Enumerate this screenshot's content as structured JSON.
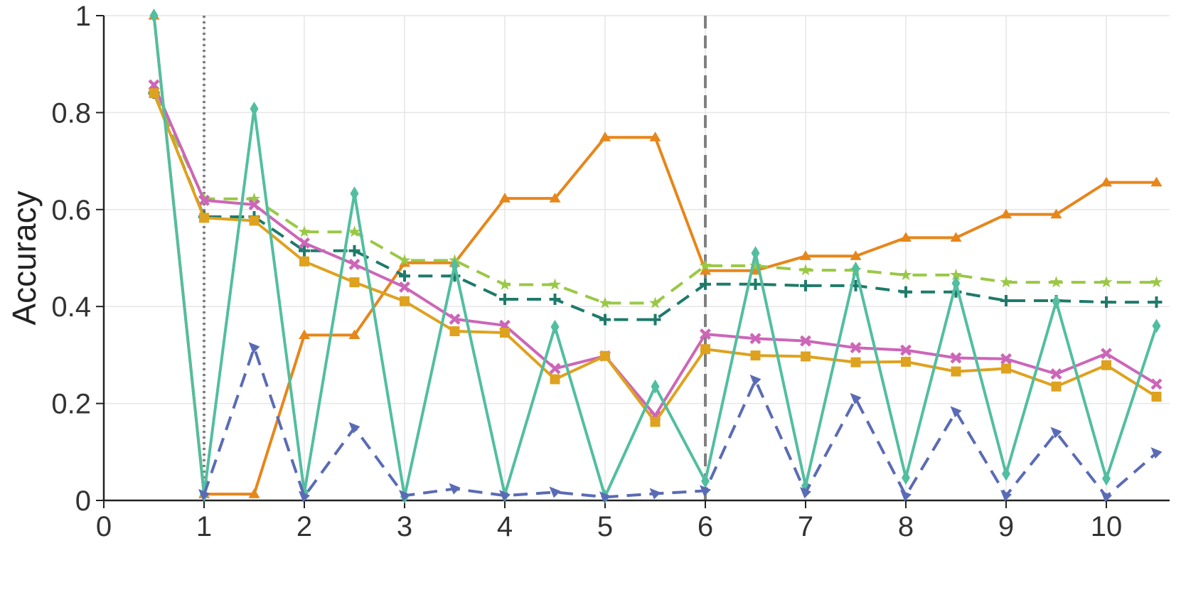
{
  "chart_data": {
    "type": "line",
    "title": "",
    "xlabel": "",
    "ylabel": "Accuracy",
    "xlim": [
      0,
      10.6
    ],
    "ylim": [
      0,
      1
    ],
    "xticks": [
      "0",
      "1",
      "2",
      "3",
      "4",
      "5",
      "6",
      "7",
      "8",
      "9",
      "10"
    ],
    "yticks": [
      "0",
      "0.2",
      "0.4",
      "0.6",
      "0.8",
      "1"
    ],
    "grid": true,
    "legend": "none",
    "vlines": [
      {
        "x": 1,
        "style": "dotted",
        "color": "#808080"
      },
      {
        "x": 6,
        "style": "dashed",
        "color": "#808080"
      }
    ],
    "x": [
      0.5,
      1,
      1.5,
      2,
      2.5,
      3,
      3.5,
      4,
      4.5,
      5,
      5.5,
      6,
      6.5,
      7,
      7.5,
      8,
      8.5,
      9,
      9.5,
      10,
      10.5
    ],
    "series": [
      {
        "color": "#e7861a",
        "dash": "solid",
        "marker": "triangle-up",
        "values": [
          1.0,
          0.013,
          0.013,
          0.341,
          0.341,
          0.49,
          0.49,
          0.623,
          0.623,
          0.749,
          0.749,
          0.474,
          0.474,
          0.504,
          0.504,
          0.542,
          0.542,
          0.59,
          0.59,
          0.656,
          0.656
        ]
      },
      {
        "color": "#9ac846",
        "dash": "dashed",
        "marker": "star",
        "values": [
          0.84,
          0.622,
          0.622,
          0.554,
          0.554,
          0.495,
          0.495,
          0.445,
          0.445,
          0.407,
          0.407,
          0.484,
          0.484,
          0.475,
          0.475,
          0.465,
          0.465,
          0.45,
          0.45,
          0.45,
          0.45
        ]
      },
      {
        "color": "#1f7a6a",
        "dash": "dashed",
        "marker": "plus",
        "values": [
          0.84,
          0.585,
          0.585,
          0.515,
          0.515,
          0.463,
          0.463,
          0.415,
          0.415,
          0.373,
          0.373,
          0.446,
          0.446,
          0.443,
          0.443,
          0.43,
          0.43,
          0.412,
          0.412,
          0.409,
          0.409
        ]
      },
      {
        "color": "#cc66b8",
        "dash": "solid",
        "marker": "x",
        "values": [
          0.857,
          0.619,
          0.61,
          0.531,
          0.487,
          0.44,
          0.374,
          0.361,
          0.272,
          0.298,
          0.175,
          0.343,
          0.334,
          0.329,
          0.315,
          0.31,
          0.294,
          0.292,
          0.261,
          0.303,
          0.24
        ]
      },
      {
        "color": "#dea21e",
        "dash": "solid",
        "marker": "square",
        "values": [
          0.84,
          0.583,
          0.577,
          0.493,
          0.45,
          0.411,
          0.349,
          0.346,
          0.25,
          0.298,
          0.162,
          0.312,
          0.299,
          0.297,
          0.285,
          0.286,
          0.266,
          0.272,
          0.235,
          0.279,
          0.214
        ]
      },
      {
        "color": "#52bea0",
        "dash": "solid",
        "marker": "diamond",
        "values": [
          1.0,
          0.012,
          0.808,
          0.016,
          0.633,
          0.008,
          0.485,
          0.012,
          0.358,
          0.008,
          0.235,
          0.04,
          0.51,
          0.03,
          0.478,
          0.047,
          0.448,
          0.055,
          0.41,
          0.045,
          0.36
        ]
      },
      {
        "color": "#5a6bb5",
        "dash": "dashed",
        "marker": "tri-right",
        "values": [
          null,
          0.012,
          0.315,
          0.008,
          0.15,
          0.01,
          0.024,
          0.01,
          0.017,
          0.007,
          0.014,
          0.02,
          0.248,
          0.016,
          0.21,
          0.01,
          0.183,
          0.01,
          0.14,
          0.008,
          0.098
        ]
      }
    ]
  }
}
